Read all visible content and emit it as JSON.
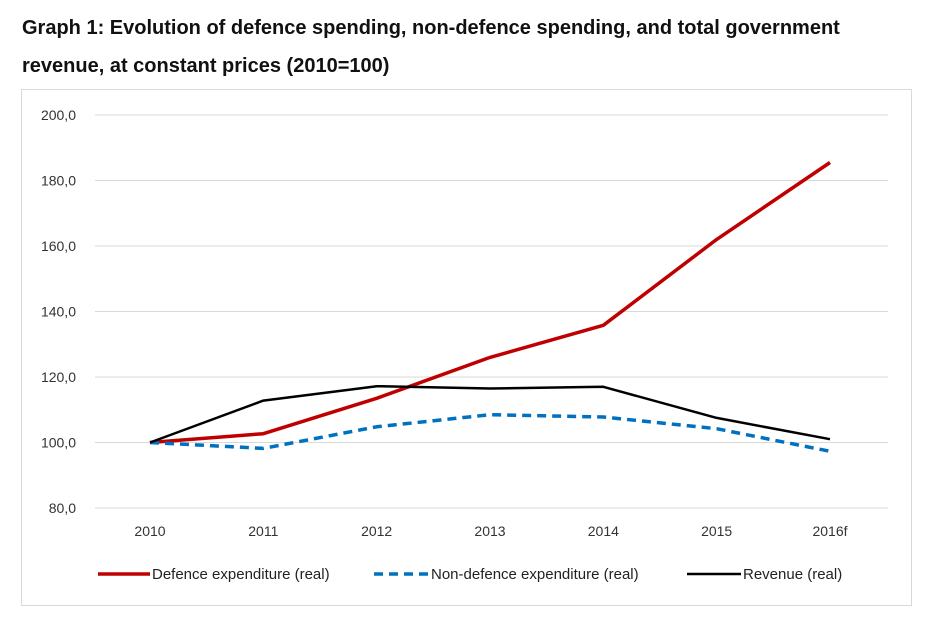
{
  "title": {
    "line1": "Graph 1: Evolution of defence spending, non-defence spending, and total government",
    "line2": "revenue, at constant prices (2010=100)"
  },
  "chart_data": {
    "type": "line",
    "title": "Graph 1: Evolution of defence spending, non-defence spending, and total government revenue, at constant prices (2010=100)",
    "categories": [
      "2010",
      "2011",
      "2012",
      "2013",
      "2014",
      "2015",
      "2016f"
    ],
    "ylim": [
      80,
      200
    ],
    "yticks": [
      80,
      100,
      120,
      140,
      160,
      180,
      200
    ],
    "ytick_labels": [
      "80,0",
      "100,0",
      "120,0",
      "140,0",
      "160,0",
      "180,0",
      "200,0"
    ],
    "grid": true,
    "legend_position": "bottom",
    "series": [
      {
        "name": "Defence expenditure (real)",
        "color": "#c00000",
        "style": "solid",
        "values": [
          100.0,
          102.7,
          113.5,
          126.0,
          135.8,
          162.0,
          185.5
        ]
      },
      {
        "name": "Non-defence expenditure (real)",
        "color": "#0070c0",
        "style": "dashed",
        "values": [
          100.0,
          98.2,
          104.8,
          108.5,
          107.8,
          104.2,
          97.3
        ]
      },
      {
        "name": "Revenue (real)",
        "color": "#000000",
        "style": "solid",
        "values": [
          100.0,
          112.8,
          117.2,
          116.5,
          117.0,
          107.5,
          101.0
        ]
      }
    ]
  }
}
